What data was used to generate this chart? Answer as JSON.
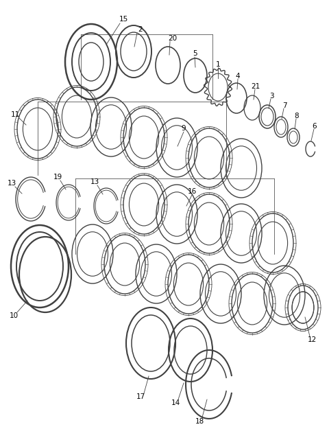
{
  "bg_color": "#ffffff",
  "line_color": "#404040",
  "fig_width": 4.8,
  "fig_height": 6.25,
  "dpi": 100,
  "xlim": [
    0,
    480
  ],
  "ylim": [
    0,
    625
  ]
}
